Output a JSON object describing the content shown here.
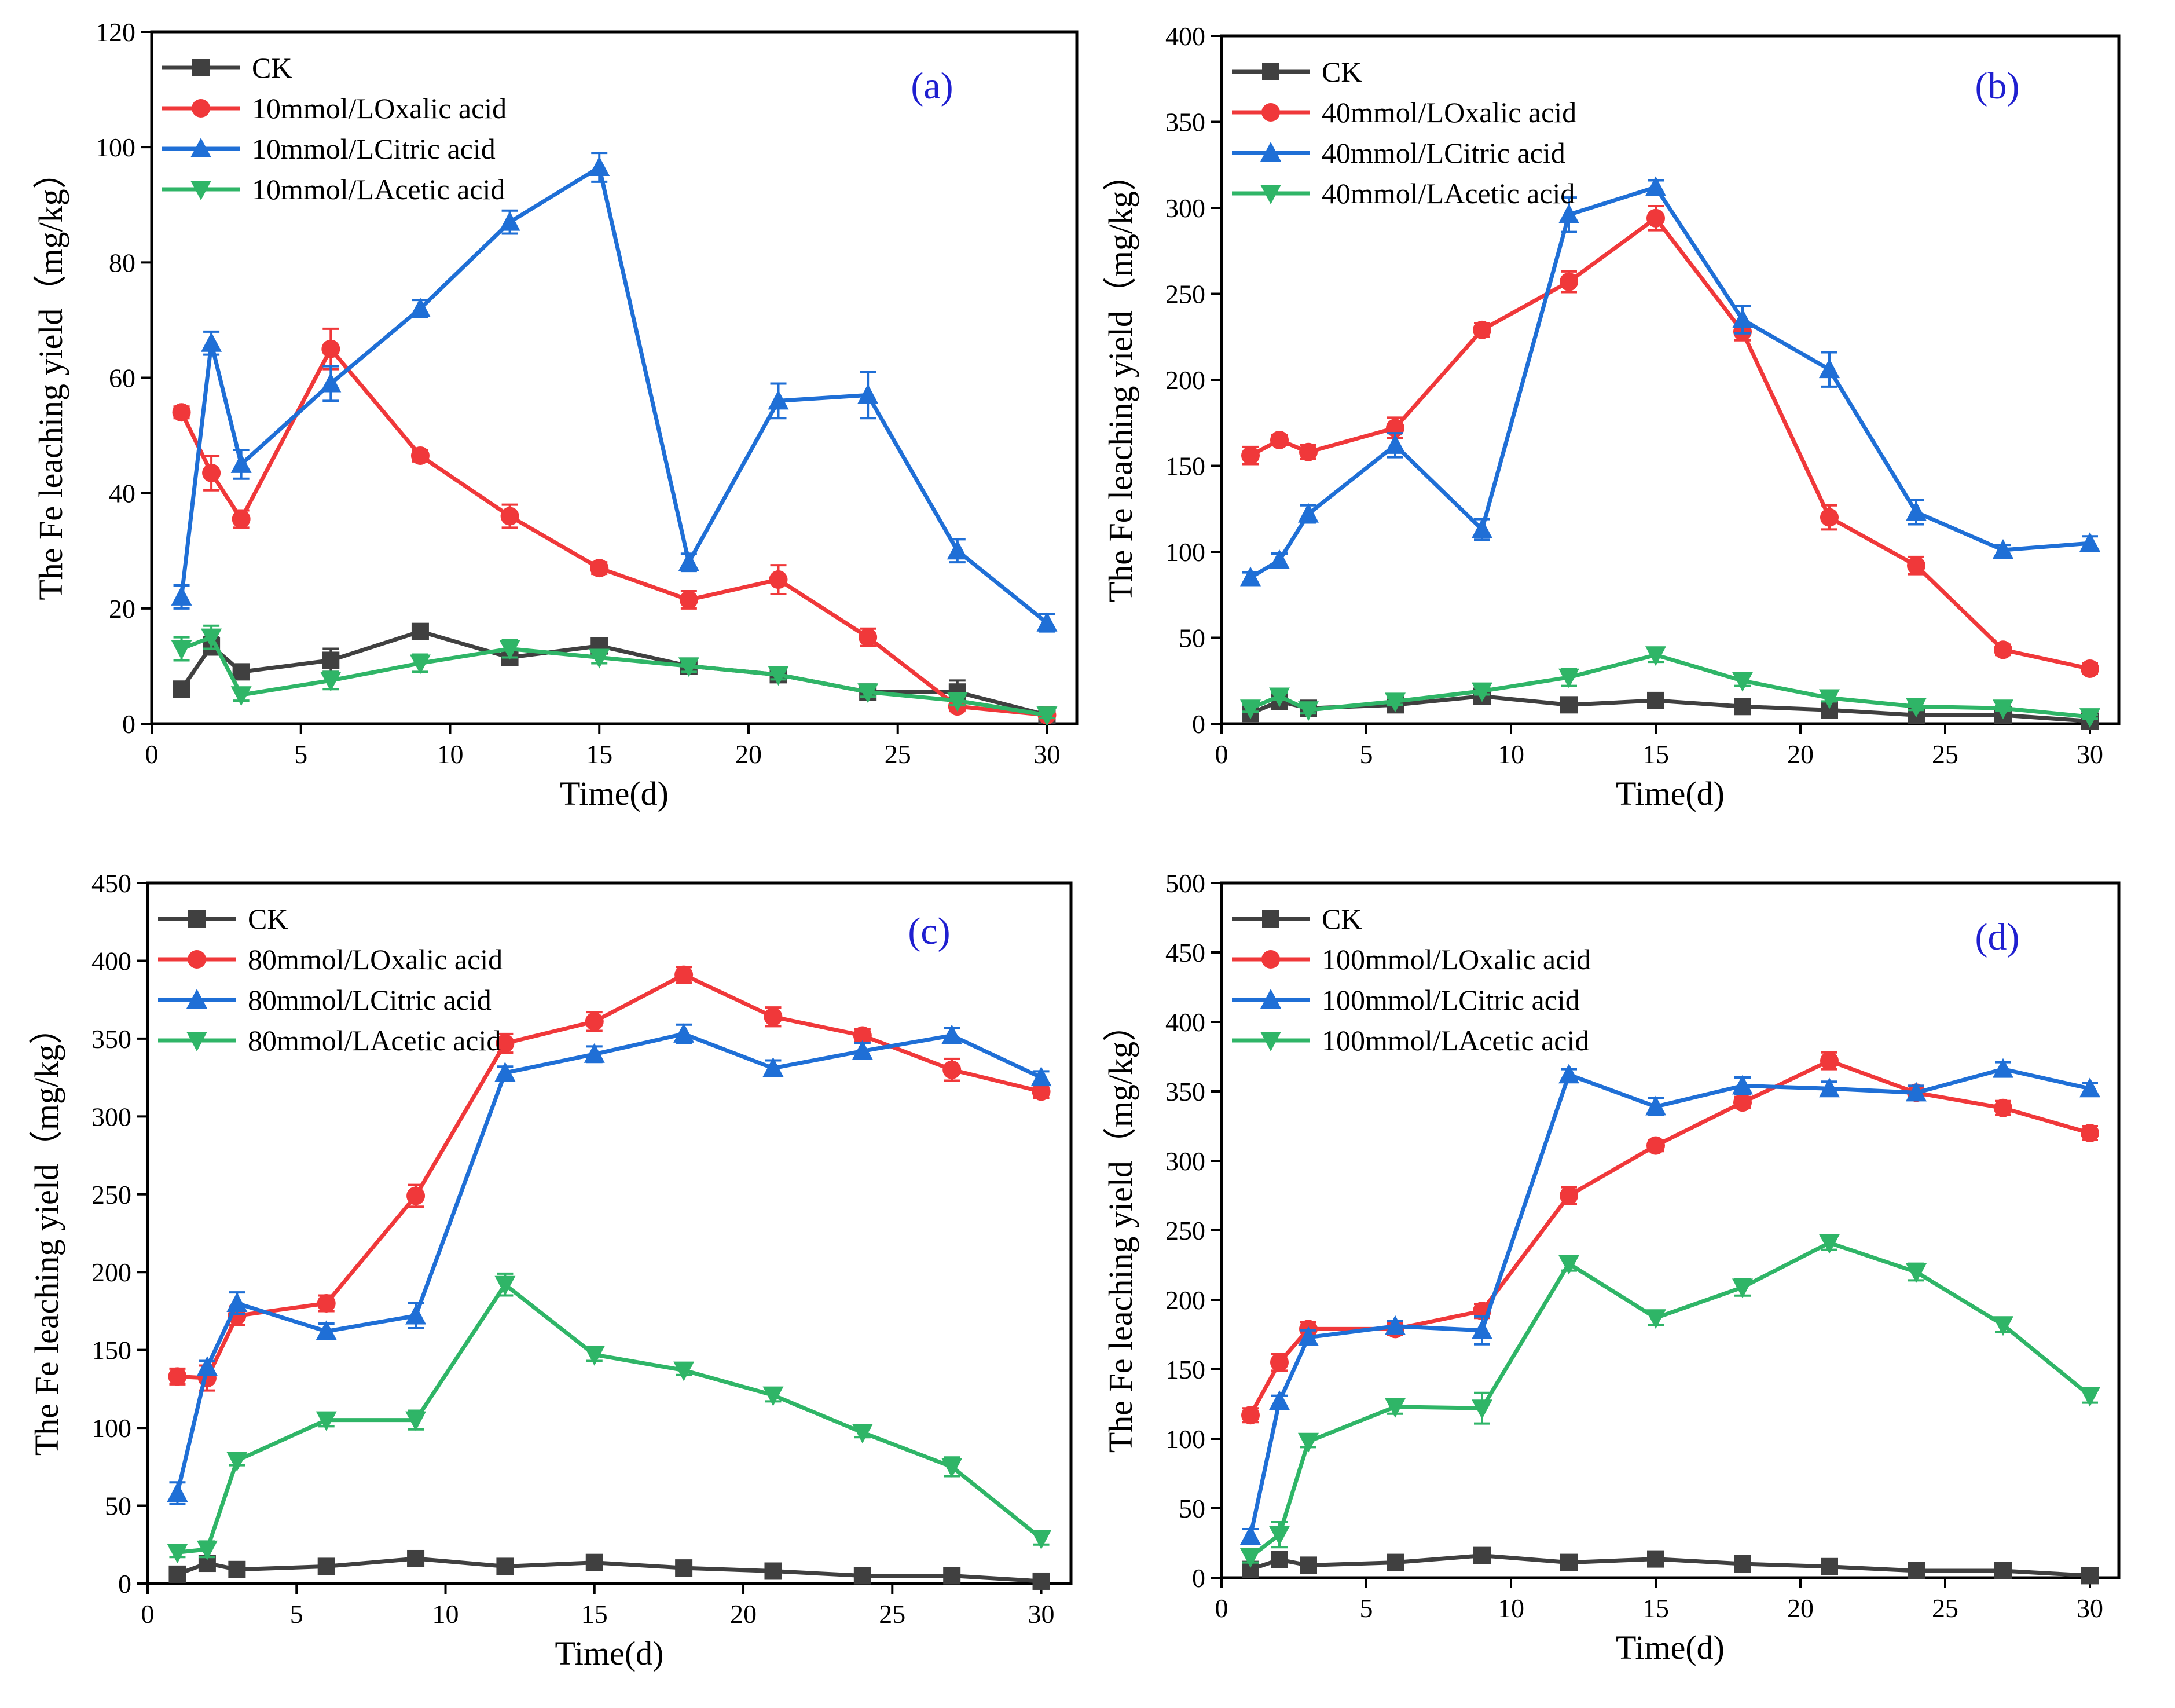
{
  "colors": {
    "CK": "#404040",
    "Oxalic": "#f0383a",
    "Citric": "#1f6fd6",
    "Acetic": "#2fb567"
  },
  "chart_data": [
    {
      "type": "line",
      "panel_label": "(a)",
      "title": "",
      "xlabel": "Time(d)",
      "ylabel": "The Fe leaching yield（mg/kg）",
      "xlim": [
        0,
        31
      ],
      "ylim": [
        0,
        120
      ],
      "xticks": [
        "0",
        "5",
        "10",
        "15",
        "20",
        "25",
        "30"
      ],
      "yticks": [
        "0",
        "20",
        "40",
        "60",
        "80",
        "100",
        "120"
      ],
      "legend_position": "top-left",
      "x": [
        1,
        2,
        3,
        6,
        9,
        12,
        15,
        18,
        21,
        24,
        27,
        30
      ],
      "series": [
        {
          "name": "CK",
          "marker": "square",
          "color": "#404040",
          "values": [
            6,
            13.5,
            9,
            11,
            16,
            11.5,
            13.5,
            10,
            8.5,
            5.5,
            5.5,
            1.5
          ],
          "errors": [
            0.8,
            1.5,
            1,
            2,
            1,
            1,
            1,
            1,
            1,
            0.8,
            2,
            0.5
          ]
        },
        {
          "name": "10mmol/LOxalic acid",
          "marker": "circle",
          "color": "#f0383a",
          "values": [
            54,
            43.5,
            35.5,
            65,
            46.5,
            36,
            27,
            21.5,
            25,
            15,
            3,
            1.5
          ],
          "errors": [
            1,
            3,
            1.5,
            3.5,
            1,
            2,
            1,
            1.5,
            2.5,
            1.5,
            0.8,
            0.5
          ]
        },
        {
          "name": "10mmol/LCitric acid",
          "marker": "triangle-up",
          "color": "#1f6fd6",
          "values": [
            22,
            66,
            45,
            59,
            72,
            87,
            96.5,
            28,
            56,
            57,
            30,
            17.5
          ],
          "errors": [
            2,
            2,
            2.5,
            3,
            1.5,
            2,
            2.5,
            1.5,
            3,
            4,
            2,
            1.5
          ]
        },
        {
          "name": "10mmol/LAcetic acid",
          "marker": "triangle-down",
          "color": "#2fb567",
          "values": [
            13,
            15,
            5,
            7.5,
            10.5,
            13,
            11.5,
            10,
            8.5,
            5.5,
            4,
            1.5
          ],
          "errors": [
            2,
            2,
            1,
            1.5,
            1.5,
            1.5,
            1,
            1,
            0.8,
            0.8,
            0.8,
            0.5
          ]
        }
      ]
    },
    {
      "type": "line",
      "panel_label": "(b)",
      "title": "",
      "xlabel": "Time(d)",
      "ylabel": "The Fe leaching yield（mg/kg）",
      "xlim": [
        0,
        31
      ],
      "ylim": [
        0,
        400
      ],
      "xticks": [
        "0",
        "5",
        "10",
        "15",
        "20",
        "25",
        "30"
      ],
      "yticks": [
        "0",
        "50",
        "100",
        "150",
        "200",
        "250",
        "300",
        "350",
        "400"
      ],
      "legend_position": "top-left",
      "x": [
        1,
        2,
        3,
        6,
        9,
        12,
        15,
        18,
        21,
        24,
        27,
        30
      ],
      "series": [
        {
          "name": "CK",
          "marker": "square",
          "color": "#404040",
          "values": [
            6,
            13,
            9,
            11,
            16,
            11,
            13.5,
            10,
            8,
            5,
            5,
            1.5
          ],
          "errors": [
            1,
            2,
            1,
            1.5,
            1,
            1,
            1,
            1,
            1,
            0.8,
            0.8,
            0.5
          ]
        },
        {
          "name": "40mmol/LOxalic acid",
          "marker": "circle",
          "color": "#f0383a",
          "values": [
            156,
            165,
            158,
            172,
            229,
            257,
            294,
            228,
            120,
            92,
            43,
            32
          ],
          "errors": [
            5,
            3,
            4,
            6,
            4,
            6,
            7,
            5,
            7,
            5,
            3,
            3
          ]
        },
        {
          "name": "40mmol/LCitric acid",
          "marker": "triangle-up",
          "color": "#1f6fd6",
          "values": [
            85,
            95,
            122,
            162,
            113,
            296,
            312,
            235,
            206,
            123,
            101,
            105
          ],
          "errors": [
            3,
            4,
            5,
            7,
            6,
            10,
            4,
            8,
            10,
            7,
            3,
            4
          ]
        },
        {
          "name": "40mmol/LAcetic acid",
          "marker": "triangle-down",
          "color": "#2fb567",
          "values": [
            9,
            16,
            8,
            13,
            19,
            27,
            40,
            25,
            15,
            10,
            9,
            4
          ],
          "errors": [
            2,
            2,
            2,
            2,
            2,
            5,
            4,
            3,
            2,
            2,
            1.5,
            1
          ]
        }
      ]
    },
    {
      "type": "line",
      "panel_label": "(c)",
      "title": "",
      "xlabel": "Time(d)",
      "ylabel": "The Fe leaching yield（mg/kg）",
      "xlim": [
        0,
        31
      ],
      "ylim": [
        0,
        450
      ],
      "xticks": [
        "0",
        "5",
        "10",
        "15",
        "20",
        "25",
        "30"
      ],
      "yticks": [
        "0",
        "50",
        "100",
        "150",
        "200",
        "250",
        "300",
        "350",
        "400",
        "450"
      ],
      "legend_position": "top-left",
      "x": [
        1,
        2,
        3,
        6,
        9,
        12,
        15,
        18,
        21,
        24,
        27,
        30
      ],
      "series": [
        {
          "name": "CK",
          "marker": "square",
          "color": "#404040",
          "values": [
            6,
            13,
            9,
            11,
            16,
            11,
            13.5,
            10,
            8,
            5,
            5,
            1.5
          ],
          "errors": [
            1,
            2,
            1,
            1.5,
            1,
            1,
            1,
            1,
            1,
            0.8,
            0.8,
            0.5
          ]
        },
        {
          "name": "80mmol/LOxalic acid",
          "marker": "circle",
          "color": "#f0383a",
          "values": [
            133,
            132,
            172,
            180,
            249,
            347,
            361,
            391,
            364,
            352,
            330,
            316
          ],
          "errors": [
            5,
            8,
            6,
            5,
            7,
            6,
            6,
            5,
            6,
            4,
            7,
            4
          ]
        },
        {
          "name": "80mmol/LCitric acid",
          "marker": "triangle-up",
          "color": "#1f6fd6",
          "values": [
            58,
            139,
            180,
            162,
            172,
            328,
            340,
            353,
            331,
            342,
            352,
            325
          ],
          "errors": [
            7,
            4,
            7,
            5,
            8,
            4,
            5,
            6,
            5,
            5,
            5,
            4
          ]
        },
        {
          "name": "80mmol/LAcetic acid",
          "marker": "triangle-down",
          "color": "#2fb567",
          "values": [
            20,
            22,
            79,
            105,
            105,
            192,
            147,
            137,
            121,
            97,
            75,
            29
          ],
          "errors": [
            3,
            5,
            3,
            4,
            6,
            7,
            4,
            3,
            4,
            3,
            6,
            4
          ]
        }
      ]
    },
    {
      "type": "line",
      "panel_label": "(d)",
      "title": "",
      "xlabel": "Time(d)",
      "ylabel": "The Fe leaching yield（mg/kg）",
      "xlim": [
        0,
        31
      ],
      "ylim": [
        0,
        500
      ],
      "xticks": [
        "0",
        "5",
        "10",
        "15",
        "20",
        "25",
        "30"
      ],
      "yticks": [
        "0",
        "50",
        "100",
        "150",
        "200",
        "250",
        "300",
        "350",
        "400",
        "450",
        "500"
      ],
      "legend_position": "top-left",
      "x": [
        1,
        2,
        3,
        6,
        9,
        12,
        15,
        18,
        21,
        24,
        27,
        30
      ],
      "series": [
        {
          "name": "CK",
          "marker": "square",
          "color": "#404040",
          "values": [
            6,
            13,
            9,
            11,
            16,
            11,
            13.5,
            10,
            8,
            5,
            5,
            1.5
          ],
          "errors": [
            1,
            2,
            1,
            1.5,
            1,
            1,
            1,
            1,
            1,
            0.8,
            0.8,
            0.5
          ]
        },
        {
          "name": "100mmol/LOxalic acid",
          "marker": "circle",
          "color": "#f0383a",
          "values": [
            117,
            155,
            179,
            179,
            192,
            275,
            311,
            342,
            372,
            349,
            338,
            320
          ],
          "errors": [
            5,
            6,
            5,
            4,
            5,
            6,
            4,
            4,
            6,
            5,
            5,
            5
          ]
        },
        {
          "name": "100mmol/LCitric acid",
          "marker": "triangle-up",
          "color": "#1f6fd6",
          "values": [
            30,
            127,
            173,
            181,
            178,
            362,
            339,
            354,
            352,
            349,
            366,
            352
          ],
          "errors": [
            5,
            4,
            5,
            4,
            10,
            4,
            6,
            6,
            5,
            5,
            5,
            4
          ]
        },
        {
          "name": "100mmol/LAcetic acid",
          "marker": "triangle-down",
          "color": "#2fb567",
          "values": [
            15,
            31,
            98,
            123,
            122,
            226,
            187,
            209,
            241,
            220,
            182,
            131
          ],
          "errors": [
            4,
            9,
            4,
            5,
            11,
            5,
            5,
            6,
            5,
            6,
            5,
            5
          ]
        }
      ]
    }
  ]
}
